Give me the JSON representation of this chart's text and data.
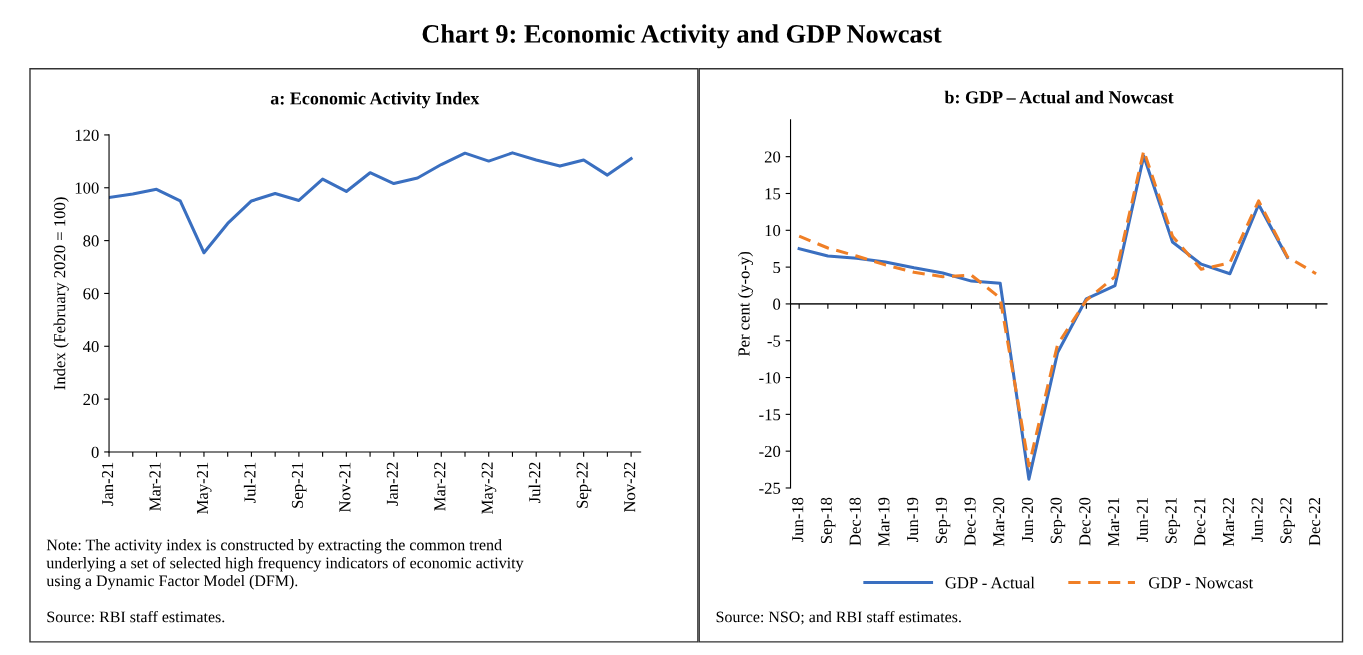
{
  "chart_data": [
    {
      "type": "line",
      "title": "Chart 9: Economic Activity and GDP Nowcast",
      "subtitle": "a: Economic Activity Index",
      "ylabel": "Index (February 2020 = 100)",
      "categories": [
        "Jan-21",
        null,
        "Mar-21",
        null,
        "May-21",
        null,
        "Jul-21",
        null,
        "Sep-21",
        null,
        "Nov-21",
        null,
        "Jan-22",
        null,
        "Mar-22",
        null,
        "May-22",
        null,
        "Jul-22",
        null,
        "Sep-22",
        null,
        "Nov-22"
      ],
      "series": [
        {
          "color": "#3a6fc0",
          "values": [
            96.3,
            97.6,
            99.4,
            95.0,
            75.4,
            86.5,
            95.0,
            97.8,
            95.2,
            103.3,
            98.6,
            105.7,
            101.6,
            103.7,
            108.8,
            113.1,
            110.1,
            113.2,
            110.5,
            108.2,
            110.5,
            104.8,
            111.0
          ]
        }
      ],
      "ylim": [
        0,
        120
      ],
      "yticks": [
        0,
        20,
        40,
        60,
        80,
        100,
        120
      ],
      "grid": false,
      "legend": false,
      "line_style": "solid",
      "annotations": [
        "Note: The activity index is constructed by extracting the common trend\nunderlying a set of selected high frequency indicators of economic activity\nusing a Dynamic Factor Model (DFM).",
        "Source: RBI staff estimates."
      ]
    },
    {
      "type": "line",
      "subtitle": "b: GDP – Actual and Nowcast",
      "ylabel": "Per cent (y-o-y)",
      "categories": [
        "Jun-18",
        "Sep-18",
        "Dec-18",
        "Mar-19",
        "Jun-19",
        "Sep-19",
        "Dec-19",
        "Mar-20",
        "Jun-20",
        "Sep-20",
        "Dec-20",
        "Mar-21",
        "Jun-21",
        "Sep-21",
        "Dec-21",
        "Mar-22",
        "Jun-22",
        "Sep-22",
        "Dec-22"
      ],
      "series": [
        {
          "name": "GDP - Actual",
          "color": "#3a6fc0",
          "line_style": "solid",
          "values": [
            7.5,
            6.5,
            6.2,
            5.7,
            4.9,
            4.2,
            3.1,
            2.8,
            -23.8,
            -6.6,
            0.7,
            2.5,
            20.1,
            8.4,
            5.4,
            4.1,
            13.5,
            6.3,
            null
          ]
        },
        {
          "name": "GDP - Nowcast",
          "color": "#f07f26",
          "line_style": "dashed",
          "values": [
            9.2,
            7.6,
            6.5,
            5.3,
            4.3,
            3.7,
            3.9,
            0.8,
            -22.0,
            -5.5,
            0.5,
            3.7,
            20.8,
            9.2,
            4.7,
            5.6,
            14.0,
            6.4,
            4.1
          ]
        }
      ],
      "ylim": [
        -25,
        25
      ],
      "yticks": [
        -25,
        -20,
        -15,
        -10,
        -5,
        0,
        5,
        10,
        15,
        20
      ],
      "grid": false,
      "legend": "bottom",
      "ref_lines": [
        {
          "axis": "y",
          "value": 0,
          "color": "#333333",
          "line_style": "solid"
        }
      ],
      "annotations": [
        "Source: NSO; and RBI staff estimates."
      ]
    }
  ]
}
